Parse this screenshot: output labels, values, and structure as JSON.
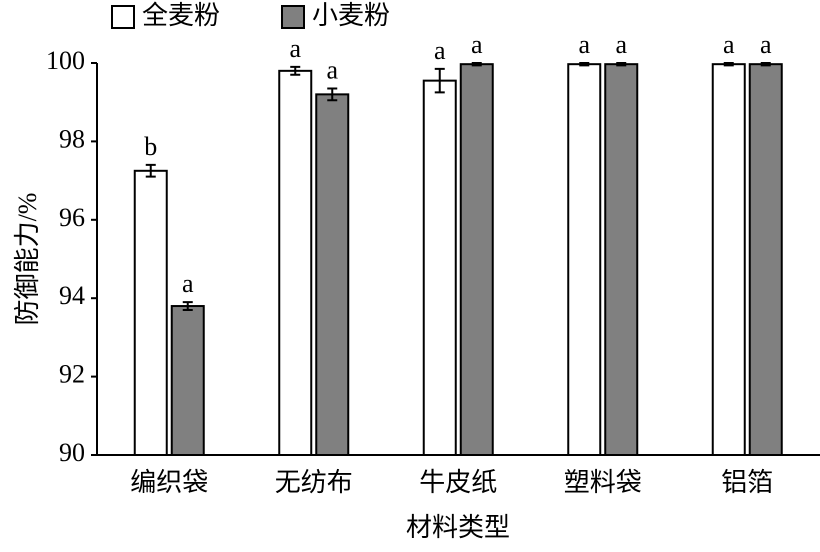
{
  "chart_data": {
    "type": "bar",
    "y_label": "防御能力/%",
    "x_label": "材料类型",
    "categories": [
      "编织袋",
      "无纺布",
      "牛皮纸",
      "塑料袋",
      "铝箔"
    ],
    "series": [
      {
        "name": "全麦粉",
        "color": "#ffffff",
        "values": [
          97.25,
          99.8,
          99.55,
          99.97,
          99.97
        ],
        "errors": [
          0.15,
          0.1,
          0.3,
          0.03,
          0.03
        ],
        "labels": [
          "b",
          "a",
          "a",
          "a",
          "a"
        ]
      },
      {
        "name": "小麦粉",
        "color": "#808080",
        "values": [
          93.8,
          99.2,
          99.97,
          99.97,
          99.97
        ],
        "errors": [
          0.1,
          0.15,
          0.03,
          0.03,
          0.03
        ],
        "labels": [
          "a",
          "a",
          "a",
          "a",
          "a"
        ]
      }
    ],
    "ylim": [
      90,
      100
    ],
    "yticks": [
      90,
      92,
      94,
      96,
      98,
      100
    ],
    "grid": false
  }
}
